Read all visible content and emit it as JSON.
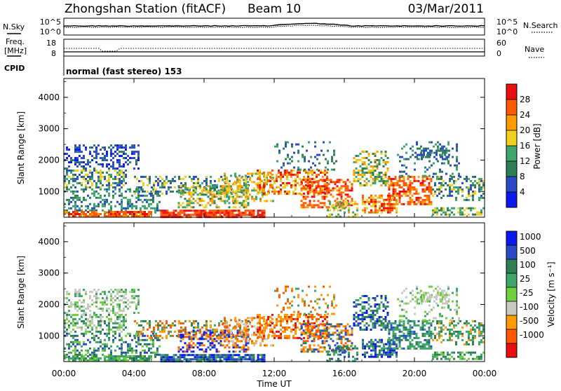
{
  "header": {
    "title": "Zhongshan Station (fitACF)",
    "beam": "Beam 10",
    "date": "03/Mar/2011"
  },
  "top_panel": {
    "left_label": "N.Sky",
    "left_ticks": [
      "10^5",
      "10^0"
    ],
    "right_ticks": [
      "10^5",
      "10^0"
    ],
    "right_label": "N.Search"
  },
  "freq_panel": {
    "label_line1": "Freq.",
    "label_line2": "[MHz]",
    "left_ticks": [
      "18",
      "8"
    ],
    "right_ticks": [
      "60",
      "0"
    ],
    "right_label": "Nave"
  },
  "cpid": {
    "label": "CPID",
    "text": "normal (fast stereo) 153"
  },
  "colors": {
    "power_scale": [
      "#0a1aee",
      "#2a4bc8",
      "#2e7f55",
      "#3ea66a",
      "#f0d020",
      "#ff9a00",
      "#ff5a00",
      "#e81010"
    ],
    "velocity_scale": [
      "#e81010",
      "#ff5a00",
      "#ff9a00",
      "#c8c8c0",
      "#6ed03a",
      "#3ea66a",
      "#2e7f55",
      "#2a4bc8",
      "#0a1aee"
    ]
  },
  "chart_data": [
    {
      "type": "heatmap",
      "name_panel": "power",
      "ylabel": "Slant Range [km]",
      "y_ticks": [
        "1000",
        "2000",
        "3000",
        "4000"
      ],
      "ylim": [
        180,
        4600
      ],
      "xlim_hours": [
        0,
        24
      ],
      "colorbar_label": "Power [dB]",
      "colorbar_ticks": [
        "4",
        "8",
        "12",
        "16",
        "20",
        "24",
        "28"
      ],
      "colorbar_range": [
        0,
        32
      ]
    },
    {
      "type": "heatmap",
      "name_panel": "velocity",
      "ylabel": "Slant Range [km]",
      "y_ticks": [
        "1000",
        "2000",
        "3000",
        "4000"
      ],
      "ylim": [
        180,
        4600
      ],
      "xlim_hours": [
        0,
        24
      ],
      "colorbar_label": "Velocity [m s⁻¹]",
      "colorbar_ticks": [
        "1000",
        "500",
        "100",
        "25",
        "-25",
        "-100",
        "-500",
        "-1000"
      ]
    }
  ],
  "x_axis": {
    "ticks": [
      "00:00",
      "04:00",
      "08:00",
      "12:00",
      "16:00",
      "20:00",
      "00:00"
    ],
    "label": "Time UT"
  }
}
